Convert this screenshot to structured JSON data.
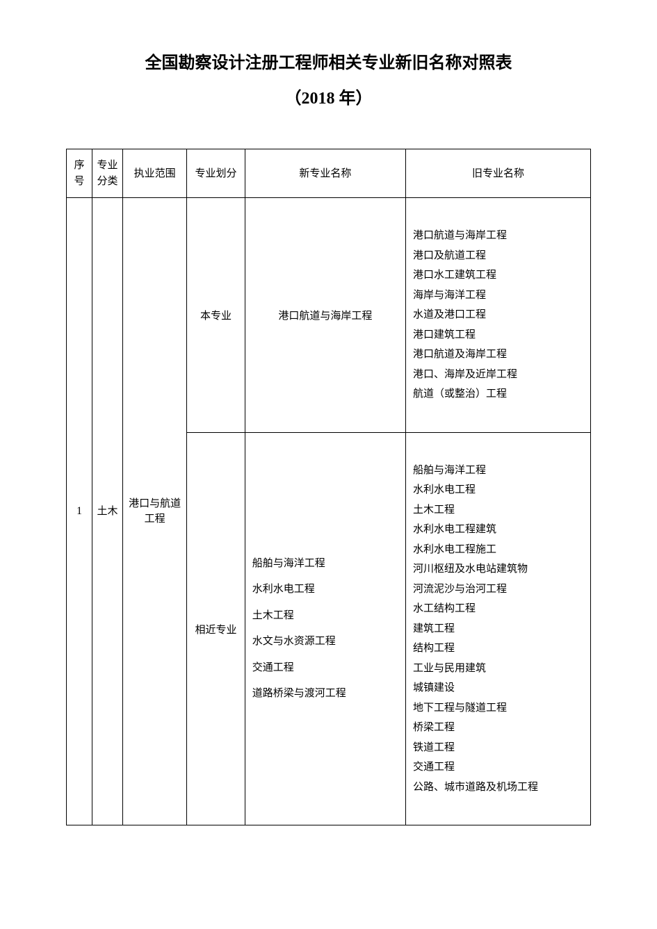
{
  "title": "全国勘察设计注册工程师相关专业新旧名称对照表",
  "subtitle": "（2018 年）",
  "table": {
    "headers": {
      "seq": "序号",
      "category": "专业分类",
      "scope": "执业范围",
      "division": "专业划分",
      "new_name": "新专业名称",
      "old_name": "旧专业名称"
    },
    "rows": [
      {
        "seq": "1",
        "category": "土木",
        "scope": "港口与航道工程",
        "subrows": [
          {
            "division": "本专业",
            "new_names": [
              "港口航道与海岸工程"
            ],
            "old_names": [
              "港口航道与海岸工程",
              "港口及航道工程",
              "港口水工建筑工程",
              "海岸与海洋工程",
              "水道及港口工程",
              "港口建筑工程",
              "港口航道及海岸工程",
              "港口、海岸及近岸工程",
              "航道（或整治）工程"
            ]
          },
          {
            "division": "相近专业",
            "new_names": [
              "船舶与海洋工程",
              "水利水电工程",
              "土木工程",
              "水文与水资源工程",
              "交通工程",
              "道路桥梁与渡河工程"
            ],
            "old_names": [
              "船舶与海洋工程",
              "水利水电工程",
              "土木工程",
              "水利水电工程建筑",
              "水利水电工程施工",
              "河川枢纽及水电站建筑物",
              "河流泥沙与治河工程",
              "水工结构工程",
              "建筑工程",
              "结构工程",
              "工业与民用建筑",
              "城镇建设",
              "地下工程与隧道工程",
              "桥梁工程",
              "铁道工程",
              "交通工程",
              "公路、城市道路及机场工程"
            ]
          }
        ]
      }
    ]
  },
  "styles": {
    "background_color": "#ffffff",
    "border_color": "#000000",
    "text_color": "#000000",
    "title_fontsize": 24,
    "body_fontsize": 15
  }
}
